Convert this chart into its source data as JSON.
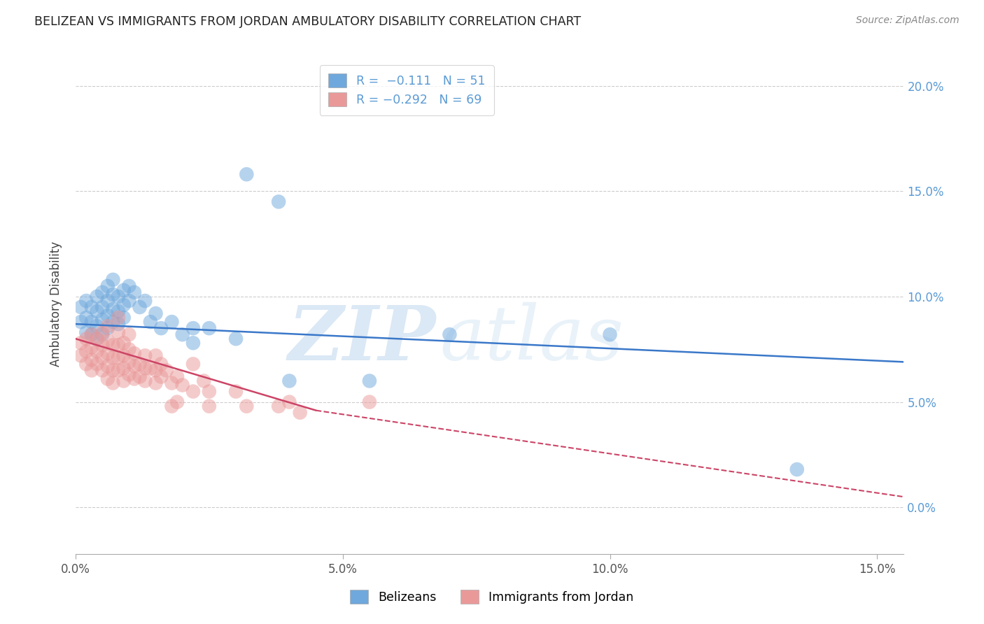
{
  "title": "BELIZEAN VS IMMIGRANTS FROM JORDAN AMBULATORY DISABILITY CORRELATION CHART",
  "source": "Source: ZipAtlas.com",
  "ylabel": "Ambulatory Disability",
  "blue_color": "#6fa8dc",
  "pink_color": "#ea9999",
  "blue_line_color": "#3a78c9",
  "pink_line_color": "#cc4466",
  "watermark_zip": "ZIP",
  "watermark_atlas": "atlas",
  "xlim": [
    0.0,
    0.155
  ],
  "ylim": [
    -0.022,
    0.215
  ],
  "x_ticks": [
    0.0,
    0.05,
    0.1,
    0.15
  ],
  "x_tick_labels": [
    "0.0%",
    "5.0%",
    "10.0%",
    "15.0%"
  ],
  "y_ticks": [
    0.0,
    0.05,
    0.1,
    0.15,
    0.2
  ],
  "y_tick_labels": [
    "0.0%",
    "5.0%",
    "10.0%",
    "15.0%",
    "20.0%"
  ],
  "legend_label_belizeans": "Belizeans",
  "legend_label_jordan": "Immigrants from Jordan",
  "legend_blue_text": "R =  −0.111   N = 51",
  "legend_pink_text": "R = −0.292   N = 69",
  "blue_line": {
    "x0": 0.0,
    "y0": 0.087,
    "x1": 0.155,
    "y1": 0.069
  },
  "pink_line_solid": {
    "x0": 0.0,
    "y0": 0.08,
    "x1": 0.045,
    "y1": 0.046
  },
  "pink_line_dashed": {
    "x0": 0.045,
    "y0": 0.046,
    "x1": 0.155,
    "y1": 0.005
  },
  "belizean_points": [
    [
      0.001,
      0.095
    ],
    [
      0.001,
      0.088
    ],
    [
      0.002,
      0.098
    ],
    [
      0.002,
      0.09
    ],
    [
      0.002,
      0.083
    ],
    [
      0.003,
      0.095
    ],
    [
      0.003,
      0.088
    ],
    [
      0.003,
      0.082
    ],
    [
      0.004,
      0.1
    ],
    [
      0.004,
      0.093
    ],
    [
      0.004,
      0.086
    ],
    [
      0.004,
      0.08
    ],
    [
      0.005,
      0.102
    ],
    [
      0.005,
      0.095
    ],
    [
      0.005,
      0.089
    ],
    [
      0.005,
      0.082
    ],
    [
      0.006,
      0.105
    ],
    [
      0.006,
      0.098
    ],
    [
      0.006,
      0.091
    ],
    [
      0.006,
      0.085
    ],
    [
      0.007,
      0.108
    ],
    [
      0.007,
      0.101
    ],
    [
      0.007,
      0.094
    ],
    [
      0.007,
      0.088
    ],
    [
      0.008,
      0.1
    ],
    [
      0.008,
      0.093
    ],
    [
      0.008,
      0.087
    ],
    [
      0.009,
      0.103
    ],
    [
      0.009,
      0.096
    ],
    [
      0.009,
      0.09
    ],
    [
      0.01,
      0.105
    ],
    [
      0.01,
      0.098
    ],
    [
      0.011,
      0.102
    ],
    [
      0.012,
      0.095
    ],
    [
      0.013,
      0.098
    ],
    [
      0.014,
      0.088
    ],
    [
      0.015,
      0.092
    ],
    [
      0.016,
      0.085
    ],
    [
      0.018,
      0.088
    ],
    [
      0.02,
      0.082
    ],
    [
      0.022,
      0.085
    ],
    [
      0.022,
      0.078
    ],
    [
      0.025,
      0.085
    ],
    [
      0.03,
      0.08
    ],
    [
      0.032,
      0.158
    ],
    [
      0.038,
      0.145
    ],
    [
      0.04,
      0.06
    ],
    [
      0.055,
      0.06
    ],
    [
      0.07,
      0.082
    ],
    [
      0.1,
      0.082
    ],
    [
      0.135,
      0.018
    ]
  ],
  "jordan_points": [
    [
      0.001,
      0.078
    ],
    [
      0.001,
      0.072
    ],
    [
      0.002,
      0.08
    ],
    [
      0.002,
      0.074
    ],
    [
      0.002,
      0.068
    ],
    [
      0.003,
      0.082
    ],
    [
      0.003,
      0.076
    ],
    [
      0.003,
      0.07
    ],
    [
      0.003,
      0.065
    ],
    [
      0.004,
      0.08
    ],
    [
      0.004,
      0.074
    ],
    [
      0.004,
      0.068
    ],
    [
      0.005,
      0.083
    ],
    [
      0.005,
      0.077
    ],
    [
      0.005,
      0.071
    ],
    [
      0.005,
      0.065
    ],
    [
      0.006,
      0.086
    ],
    [
      0.006,
      0.079
    ],
    [
      0.006,
      0.073
    ],
    [
      0.006,
      0.067
    ],
    [
      0.006,
      0.061
    ],
    [
      0.007,
      0.077
    ],
    [
      0.007,
      0.071
    ],
    [
      0.007,
      0.065
    ],
    [
      0.007,
      0.059
    ],
    [
      0.008,
      0.09
    ],
    [
      0.008,
      0.083
    ],
    [
      0.008,
      0.077
    ],
    [
      0.008,
      0.071
    ],
    [
      0.008,
      0.065
    ],
    [
      0.009,
      0.078
    ],
    [
      0.009,
      0.072
    ],
    [
      0.009,
      0.066
    ],
    [
      0.009,
      0.06
    ],
    [
      0.01,
      0.082
    ],
    [
      0.01,
      0.075
    ],
    [
      0.01,
      0.069
    ],
    [
      0.01,
      0.063
    ],
    [
      0.011,
      0.073
    ],
    [
      0.011,
      0.067
    ],
    [
      0.011,
      0.061
    ],
    [
      0.012,
      0.068
    ],
    [
      0.012,
      0.062
    ],
    [
      0.013,
      0.072
    ],
    [
      0.013,
      0.066
    ],
    [
      0.013,
      0.06
    ],
    [
      0.014,
      0.066
    ],
    [
      0.015,
      0.072
    ],
    [
      0.015,
      0.065
    ],
    [
      0.015,
      0.059
    ],
    [
      0.016,
      0.068
    ],
    [
      0.016,
      0.062
    ],
    [
      0.017,
      0.065
    ],
    [
      0.018,
      0.059
    ],
    [
      0.018,
      0.048
    ],
    [
      0.019,
      0.062
    ],
    [
      0.019,
      0.05
    ],
    [
      0.02,
      0.058
    ],
    [
      0.022,
      0.068
    ],
    [
      0.022,
      0.055
    ],
    [
      0.024,
      0.06
    ],
    [
      0.025,
      0.055
    ],
    [
      0.025,
      0.048
    ],
    [
      0.03,
      0.055
    ],
    [
      0.032,
      0.048
    ],
    [
      0.038,
      0.048
    ],
    [
      0.04,
      0.05
    ],
    [
      0.042,
      0.045
    ],
    [
      0.055,
      0.05
    ]
  ]
}
